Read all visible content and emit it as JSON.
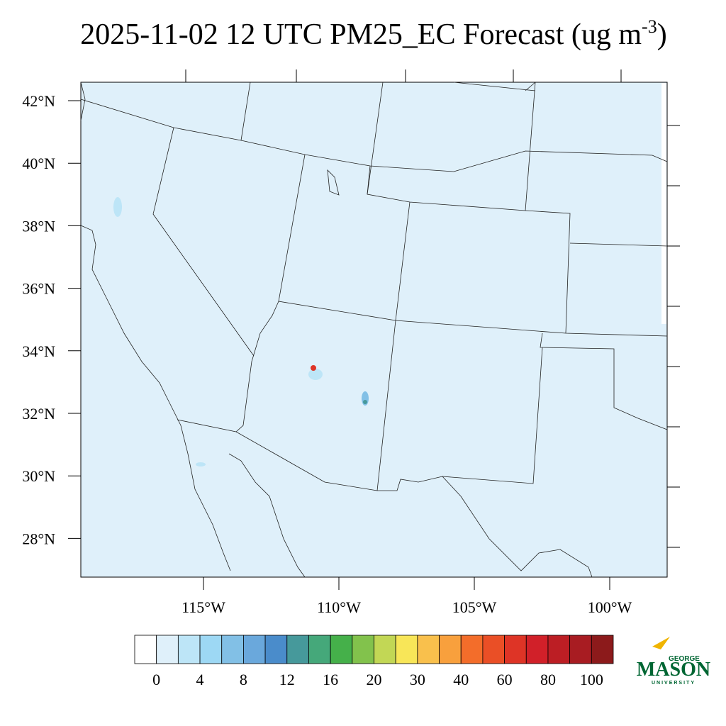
{
  "header": {
    "title": "2025-11-02 12 UTC PM25_EC Forecast (ug m",
    "title_superscript": "-3",
    "title_end": ")"
  },
  "map": {
    "lat_labels": [
      "42°N",
      "40°N",
      "38°N",
      "36°N",
      "34°N",
      "32°N",
      "30°N",
      "28°N"
    ],
    "lon_labels": [
      "115°W",
      "110°W",
      "105°W",
      "100°W"
    ]
  },
  "colorbar": {
    "colors": [
      "#ffffff",
      "#dff0fa",
      "#bde5f7",
      "#9dd8f4",
      "#82c0e6",
      "#6aa8dc",
      "#4a8ccb",
      "#46999b",
      "#45a87a",
      "#45b04a",
      "#82c24c",
      "#c2d755",
      "#f8e658",
      "#f9c04c",
      "#f8a03d",
      "#f36d2a",
      "#ea4f26",
      "#de3426",
      "#d12029",
      "#bc1e24",
      "#a81c22",
      "#8c1a1b"
    ],
    "ticks": [
      0,
      4,
      8,
      12,
      16,
      20,
      30,
      40,
      60,
      80,
      100
    ]
  },
  "logo": {
    "top": "GEORGE",
    "main": "MASON",
    "bottom": "UNIVERSITY"
  }
}
